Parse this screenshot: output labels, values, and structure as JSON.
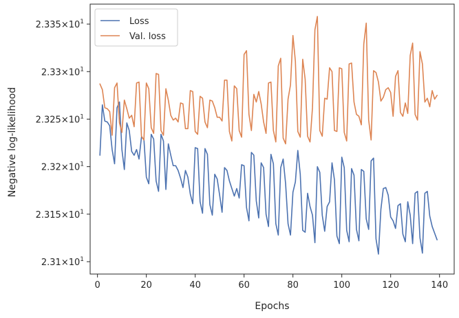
{
  "chart_data": {
    "type": "line",
    "xlabel": "Epochs",
    "ylabel": "Negative log-likelihood",
    "xlim": [
      -3,
      146
    ],
    "ylim": [
      23.087,
      23.371
    ],
    "x_ticks": [
      0,
      20,
      40,
      60,
      80,
      100,
      120,
      140
    ],
    "x_tick_labels": [
      "0",
      "20",
      "40",
      "60",
      "80",
      "100",
      "120",
      "140"
    ],
    "y_ticks": [
      23.1,
      23.15,
      23.2,
      23.25,
      23.3,
      23.35
    ],
    "y_tick_labels": [
      {
        "mantissa": "2.31",
        "base": "10",
        "exponent": "1"
      },
      {
        "mantissa": "2.315",
        "base": "10",
        "exponent": "1"
      },
      {
        "mantissa": "2.32",
        "base": "10",
        "exponent": "1"
      },
      {
        "mantissa": "2.325",
        "base": "10",
        "exponent": "1"
      },
      {
        "mantissa": "2.33",
        "base": "10",
        "exponent": "1"
      },
      {
        "mantissa": "2.335",
        "base": "10",
        "exponent": "1"
      }
    ],
    "legend_position": "upper-left",
    "grid": false,
    "series": [
      {
        "name": "Loss",
        "color": "#4c72b0",
        "x": [
          1,
          2,
          3,
          4,
          5,
          6,
          7,
          8,
          9,
          10,
          11,
          12,
          13,
          14,
          15,
          16,
          17,
          18,
          19,
          20,
          21,
          22,
          23,
          24,
          25,
          26,
          27,
          28,
          29,
          30,
          31,
          32,
          33,
          34,
          35,
          36,
          37,
          38,
          39,
          40,
          41,
          42,
          43,
          44,
          45,
          46,
          47,
          48,
          49,
          50,
          51,
          52,
          53,
          54,
          55,
          56,
          57,
          58,
          59,
          60,
          61,
          62,
          63,
          64,
          65,
          66,
          67,
          68,
          69,
          70,
          71,
          72,
          73,
          74,
          75,
          76,
          77,
          78,
          79,
          80,
          81,
          82,
          83,
          84,
          85,
          86,
          87,
          88,
          89,
          90,
          91,
          92,
          93,
          94,
          95,
          96,
          97,
          98,
          99,
          100,
          101,
          102,
          103,
          104,
          105,
          106,
          107,
          108,
          109,
          110,
          111,
          112,
          113,
          114,
          115,
          116,
          117,
          118,
          119,
          120,
          121,
          122,
          123,
          124,
          125,
          126,
          127,
          128,
          129,
          130,
          131,
          132,
          133,
          134,
          135,
          136,
          137,
          138,
          139
        ],
        "y": [
          23.212,
          23.265,
          23.248,
          23.247,
          23.243,
          23.218,
          23.203,
          23.262,
          23.268,
          23.218,
          23.197,
          23.246,
          23.238,
          23.216,
          23.212,
          23.218,
          23.208,
          23.231,
          23.229,
          23.189,
          23.182,
          23.234,
          23.229,
          23.185,
          23.174,
          23.234,
          23.227,
          23.176,
          23.224,
          23.212,
          23.201,
          23.201,
          23.196,
          23.188,
          23.178,
          23.196,
          23.189,
          23.171,
          23.161,
          23.22,
          23.219,
          23.163,
          23.151,
          23.219,
          23.213,
          23.16,
          23.149,
          23.192,
          23.187,
          23.17,
          23.152,
          23.199,
          23.196,
          23.185,
          23.177,
          23.169,
          23.177,
          23.167,
          23.202,
          23.201,
          23.157,
          23.143,
          23.215,
          23.212,
          23.164,
          23.146,
          23.204,
          23.199,
          23.15,
          23.137,
          23.213,
          23.203,
          23.14,
          23.128,
          23.199,
          23.208,
          23.182,
          23.14,
          23.128,
          23.173,
          23.184,
          23.217,
          23.192,
          23.133,
          23.131,
          23.172,
          23.158,
          23.149,
          23.12,
          23.2,
          23.194,
          23.149,
          23.132,
          23.158,
          23.163,
          23.204,
          23.186,
          23.127,
          23.119,
          23.21,
          23.199,
          23.133,
          23.121,
          23.198,
          23.191,
          23.134,
          23.122,
          23.197,
          23.195,
          23.145,
          23.134,
          23.206,
          23.209,
          23.124,
          23.108,
          23.155,
          23.177,
          23.178,
          23.17,
          23.147,
          23.143,
          23.135,
          23.159,
          23.161,
          23.129,
          23.121,
          23.163,
          23.149,
          23.119,
          23.172,
          23.174,
          23.125,
          23.109,
          23.172,
          23.174,
          23.148,
          23.137,
          23.13,
          23.123
        ]
      },
      {
        "name": "Val. loss",
        "color": "#dd8452",
        "x": [
          1,
          2,
          3,
          4,
          5,
          6,
          7,
          8,
          9,
          10,
          11,
          12,
          13,
          14,
          15,
          16,
          17,
          18,
          19,
          20,
          21,
          22,
          23,
          24,
          25,
          26,
          27,
          28,
          29,
          30,
          31,
          32,
          33,
          34,
          35,
          36,
          37,
          38,
          39,
          40,
          41,
          42,
          43,
          44,
          45,
          46,
          47,
          48,
          49,
          50,
          51,
          52,
          53,
          54,
          55,
          56,
          57,
          58,
          59,
          60,
          61,
          62,
          63,
          64,
          65,
          66,
          67,
          68,
          69,
          70,
          71,
          72,
          73,
          74,
          75,
          76,
          77,
          78,
          79,
          80,
          81,
          82,
          83,
          84,
          85,
          86,
          87,
          88,
          89,
          90,
          91,
          92,
          93,
          94,
          95,
          96,
          97,
          98,
          99,
          100,
          101,
          102,
          103,
          104,
          105,
          106,
          107,
          108,
          109,
          110,
          111,
          112,
          113,
          114,
          115,
          116,
          117,
          118,
          119,
          120,
          121,
          122,
          123,
          124,
          125,
          126,
          127,
          128,
          129,
          130,
          131,
          132,
          133,
          134,
          135,
          136,
          137,
          138,
          139
        ],
        "y": [
          23.287,
          23.281,
          23.262,
          23.261,
          23.258,
          23.233,
          23.283,
          23.288,
          23.246,
          23.236,
          23.27,
          23.261,
          23.251,
          23.254,
          23.242,
          23.288,
          23.289,
          23.232,
          23.228,
          23.288,
          23.282,
          23.241,
          23.235,
          23.298,
          23.297,
          23.238,
          23.233,
          23.282,
          23.27,
          23.254,
          23.249,
          23.251,
          23.247,
          23.267,
          23.266,
          23.24,
          23.24,
          23.28,
          23.279,
          23.237,
          23.234,
          23.274,
          23.272,
          23.247,
          23.241,
          23.27,
          23.269,
          23.262,
          23.252,
          23.252,
          23.248,
          23.291,
          23.291,
          23.237,
          23.227,
          23.285,
          23.282,
          23.238,
          23.231,
          23.318,
          23.322,
          23.255,
          23.238,
          23.276,
          23.268,
          23.279,
          23.266,
          23.247,
          23.235,
          23.288,
          23.289,
          23.238,
          23.226,
          23.306,
          23.314,
          23.23,
          23.224,
          23.271,
          23.286,
          23.338,
          23.311,
          23.237,
          23.231,
          23.313,
          23.292,
          23.232,
          23.226,
          23.262,
          23.344,
          23.358,
          23.238,
          23.232,
          23.272,
          23.271,
          23.304,
          23.3,
          23.238,
          23.237,
          23.304,
          23.303,
          23.236,
          23.227,
          23.308,
          23.309,
          23.268,
          23.255,
          23.253,
          23.244,
          23.329,
          23.351,
          23.249,
          23.228,
          23.301,
          23.299,
          23.289,
          23.269,
          23.273,
          23.281,
          23.283,
          23.278,
          23.253,
          23.295,
          23.301,
          23.257,
          23.253,
          23.267,
          23.256,
          23.317,
          23.33,
          23.255,
          23.249,
          23.321,
          23.308,
          23.268,
          23.272,
          23.263,
          23.28,
          23.271,
          23.275
        ]
      }
    ]
  }
}
